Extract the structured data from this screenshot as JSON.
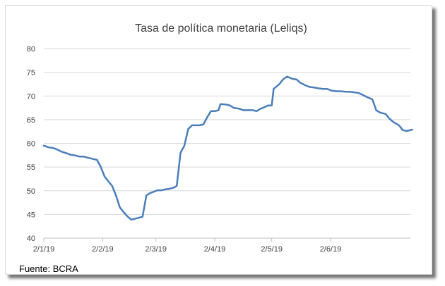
{
  "chart_data": {
    "type": "line",
    "title": "Tasa de política monetaria (Leliqs)",
    "xlabel": "",
    "ylabel": "",
    "x_tick_labels": [
      "2/1/19",
      "2/2/19",
      "2/3/19",
      "2/4/19",
      "2/5/19",
      "2/6/19"
    ],
    "x_tick_days": [
      0,
      31,
      59,
      90,
      120,
      151
    ],
    "ylim": [
      40,
      80
    ],
    "y_ticks": [
      40,
      45,
      50,
      55,
      60,
      65,
      70,
      75,
      80
    ],
    "grid": "horizontal",
    "series": [
      {
        "color": "#4a7ebb",
        "points": [
          [
            "2019-01-02",
            59.5
          ],
          [
            "2019-01-03",
            59.4
          ],
          [
            "2019-01-04",
            59.2
          ],
          [
            "2019-01-07",
            59.0
          ],
          [
            "2019-01-09",
            58.7
          ],
          [
            "2019-01-11",
            58.3
          ],
          [
            "2019-01-14",
            57.9
          ],
          [
            "2019-01-16",
            57.6
          ],
          [
            "2019-01-18",
            57.5
          ],
          [
            "2019-01-21",
            57.2
          ],
          [
            "2019-01-23",
            57.2
          ],
          [
            "2019-01-25",
            57.0
          ],
          [
            "2019-01-28",
            56.7
          ],
          [
            "2019-01-30",
            56.5
          ],
          [
            "2019-02-01",
            55.0
          ],
          [
            "2019-02-03",
            53.0
          ],
          [
            "2019-02-05",
            52.0
          ],
          [
            "2019-02-07",
            51.0
          ],
          [
            "2019-02-09",
            49.0
          ],
          [
            "2019-02-11",
            46.5
          ],
          [
            "2019-02-13",
            45.5
          ],
          [
            "2019-02-15",
            44.6
          ],
          [
            "2019-02-17",
            43.9
          ],
          [
            "2019-02-19",
            44.1
          ],
          [
            "2019-02-21",
            44.3
          ],
          [
            "2019-02-23",
            44.5
          ],
          [
            "2019-02-25",
            49.0
          ],
          [
            "2019-02-27",
            49.5
          ],
          [
            "2019-03-01",
            49.8
          ],
          [
            "2019-03-03",
            50.1
          ],
          [
            "2019-03-05",
            50.1
          ],
          [
            "2019-03-07",
            50.3
          ],
          [
            "2019-03-09",
            50.4
          ],
          [
            "2019-03-11",
            50.6
          ],
          [
            "2019-03-13",
            51.0
          ],
          [
            "2019-03-15",
            58.0
          ],
          [
            "2019-03-17",
            59.5
          ],
          [
            "2019-03-19",
            63.0
          ],
          [
            "2019-03-21",
            63.8
          ],
          [
            "2019-03-23",
            63.8
          ],
          [
            "2019-03-25",
            63.8
          ],
          [
            "2019-03-27",
            64.0
          ],
          [
            "2019-03-29",
            65.5
          ],
          [
            "2019-03-31",
            66.8
          ],
          [
            "2019-04-02",
            66.8
          ],
          [
            "2019-04-04",
            67.0
          ],
          [
            "2019-04-05",
            68.3
          ],
          [
            "2019-04-08",
            68.2
          ],
          [
            "2019-04-10",
            68.0
          ],
          [
            "2019-04-12",
            67.5
          ],
          [
            "2019-04-15",
            67.3
          ],
          [
            "2019-04-17",
            67.0
          ],
          [
            "2019-04-19",
            67.0
          ],
          [
            "2019-04-22",
            67.0
          ],
          [
            "2019-04-24",
            66.8
          ],
          [
            "2019-04-26",
            67.3
          ],
          [
            "2019-04-28",
            67.6
          ],
          [
            "2019-04-30",
            68.0
          ],
          [
            "2019-05-02",
            68.0
          ],
          [
            "2019-05-03",
            71.5
          ],
          [
            "2019-05-06",
            72.5
          ],
          [
            "2019-05-08",
            73.5
          ],
          [
            "2019-05-10",
            74.1
          ],
          [
            "2019-05-13",
            73.6
          ],
          [
            "2019-05-15",
            73.5
          ],
          [
            "2019-05-17",
            72.8
          ],
          [
            "2019-05-20",
            72.2
          ],
          [
            "2019-05-22",
            71.9
          ],
          [
            "2019-05-24",
            71.8
          ],
          [
            "2019-05-27",
            71.6
          ],
          [
            "2019-05-29",
            71.5
          ],
          [
            "2019-05-31",
            71.5
          ],
          [
            "2019-06-03",
            71.1
          ],
          [
            "2019-06-05",
            71.0
          ],
          [
            "2019-06-07",
            71.0
          ],
          [
            "2019-06-10",
            70.9
          ],
          [
            "2019-06-12",
            70.9
          ],
          [
            "2019-06-14",
            70.8
          ],
          [
            "2019-06-17",
            70.6
          ],
          [
            "2019-06-19",
            70.2
          ],
          [
            "2019-06-21",
            69.8
          ],
          [
            "2019-06-24",
            69.3
          ],
          [
            "2019-06-26",
            67.0
          ],
          [
            "2019-06-28",
            66.5
          ],
          [
            "2019-07-01",
            66.2
          ],
          [
            "2019-07-03",
            65.2
          ],
          [
            "2019-07-05",
            64.5
          ],
          [
            "2019-07-08",
            63.8
          ],
          [
            "2019-07-10",
            62.8
          ],
          [
            "2019-07-12",
            62.6
          ],
          [
            "2019-07-15",
            62.9
          ]
        ]
      }
    ]
  },
  "source_note": "Fuente: BCRA"
}
